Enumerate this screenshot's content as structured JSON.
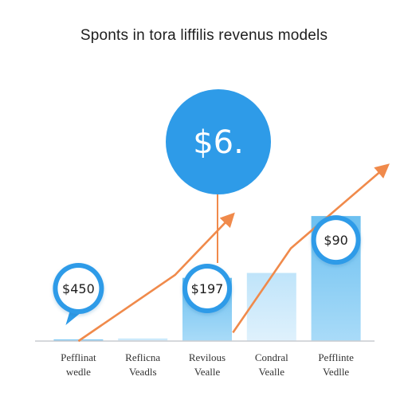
{
  "chart_data": {
    "type": "bar",
    "title": "Sponts in tora liffilis revenus models",
    "categories": [
      {
        "line1": "Pefflinat",
        "line2": "wedle"
      },
      {
        "line1": "Reflicna",
        "line2": "Veadls"
      },
      {
        "line1": "Revilous",
        "line2": "Vealle"
      },
      {
        "line1": "Condral",
        "line2": "Vealle"
      },
      {
        "line1": "Pefflinte",
        "line2": "Vedlle"
      }
    ],
    "values": [
      12,
      18,
      450,
      485,
      890
    ],
    "callouts": [
      {
        "category_index": 0,
        "text": "$450"
      },
      {
        "category_index": 2,
        "text": "$197"
      },
      {
        "category_index": 4,
        "text": "$90"
      }
    ],
    "highlight_bubble": {
      "text": "$6.",
      "category_index": 2
    },
    "trend_lines": [
      {
        "points": [
          [
            0,
            0
          ],
          [
            1.5,
            470
          ],
          [
            2.4,
            900
          ]
        ]
      },
      {
        "points": [
          [
            2.4,
            60
          ],
          [
            3.3,
            660
          ],
          [
            4.8,
            1250
          ]
        ]
      }
    ],
    "ylim": [
      0,
      1350
    ],
    "grid": false,
    "legend": "none",
    "colors": {
      "bar_dark": "#73c5f2",
      "bar_light": "#cbe9fb",
      "bubble": "#2e9be8",
      "callout_ring": "#2e9be8",
      "trend": "#f08a4b",
      "axis": "#c9ccd0",
      "stem": "#f08a4b"
    }
  }
}
